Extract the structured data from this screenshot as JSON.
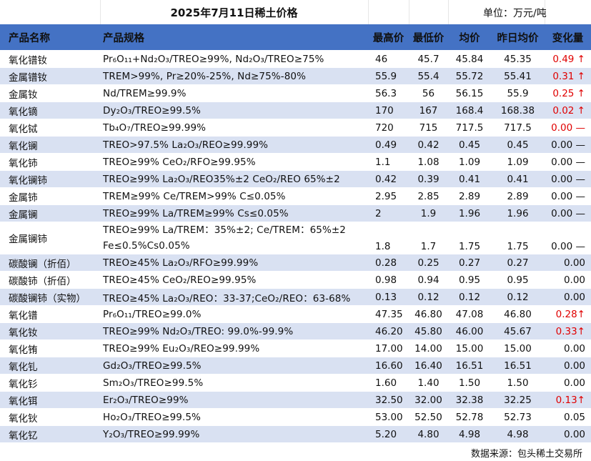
{
  "title": "2025年7月11日稀土价格",
  "unit": "单位：万元/吨",
  "headers": {
    "name": "产品名称",
    "spec": "产品规格",
    "high": "最高价",
    "low": "最低价",
    "avg": "均价",
    "prev_avg": "昨日均价",
    "change": "变化量"
  },
  "colors": {
    "header_bg": "#4472c4",
    "stripe": "#d9e1f2",
    "up": "#e00000"
  },
  "rows": [
    {
      "name": "氧化镨钕",
      "spec": "Pr₆O₁₁+Nd₂O₃/TREO≥99%, Nd₂O₃/TREO≥75%",
      "high": "46",
      "low": "45.7",
      "avg": "45.84",
      "prev": "45.35",
      "change": "0.49 ↑",
      "dir": "up"
    },
    {
      "name": "金属镨钕",
      "spec": "TREM>99%, Pr≥20%-25%, Nd≥75%-80%",
      "high": "55.9",
      "low": "55.4",
      "avg": "55.72",
      "prev": "55.41",
      "change": "0.31 ↑",
      "dir": "up"
    },
    {
      "name": "金属钕",
      "spec": "Nd/TREM≥99.9%",
      "high": "56.3",
      "low": "56",
      "avg": "56.15",
      "prev": "55.9",
      "change": "0.25 ↑",
      "dir": "up"
    },
    {
      "name": "氧化镝",
      "spec": "Dy₂O₃/TREO≥99.5%",
      "high": "170",
      "low": "167",
      "avg": "168.4",
      "prev": "168.38",
      "change": "0.02 ↑",
      "dir": "up"
    },
    {
      "name": "氧化铽",
      "spec": "Tb₄O₇/TREO≥99.99%",
      "high": "720",
      "low": "715",
      "avg": "717.5",
      "prev": "717.5",
      "change": "0.00 —",
      "dir": "flat-red"
    },
    {
      "name": "氧化镧",
      "spec": "TREO>97.5% La₂O₃/REO≥99.99%",
      "high": "0.49",
      "low": "0.42",
      "avg": "0.45",
      "prev": "0.45",
      "change": "0.00 —",
      "dir": "flat"
    },
    {
      "name": "氧化铈",
      "spec": "TREO≥99% CeO₂/RFO≥99.95%",
      "high": "1.1",
      "low": "1.08",
      "avg": "1.09",
      "prev": "1.09",
      "change": "0.00 —",
      "dir": "flat"
    },
    {
      "name": "氧化镧铈",
      "spec": "TREO≥99% La₂O₃/REO35%±2 CeO₂/REO 65%±2",
      "high": "0.42",
      "low": "0.39",
      "avg": "0.41",
      "prev": "0.41",
      "change": "0.00 —",
      "dir": "flat"
    },
    {
      "name": "金属铈",
      "spec": "TREM≥99% Ce/TREM>99% C≤0.05%",
      "high": "2.95",
      "low": "2.85",
      "avg": "2.89",
      "prev": "2.89",
      "change": "0.00 —",
      "dir": "flat"
    },
    {
      "name": "金属镧",
      "spec": "TREO≥99% La/TREM≥99% Cs≤0.05%",
      "high": "2",
      "low": "1.9",
      "avg": "1.96",
      "prev": "1.96",
      "change": "0.00 —",
      "dir": "flat"
    },
    {
      "name": "金属镧铈",
      "spec": "TREO≥99% La/TREM：35%±2; Ce/TREM：65%±2 Fe≤0.5%Cs0.05%",
      "high": "1.8",
      "low": "1.7",
      "avg": "1.75",
      "prev": "1.75",
      "change": "0.00 —",
      "dir": "flat",
      "tall": true
    },
    {
      "name": "碳酸镧（折佰）",
      "spec": "TREO≥45% La₂O₃/RFO≥99.99%",
      "high": "0.28",
      "low": "0.25",
      "avg": "0.27",
      "prev": "0.27",
      "change": "0.00",
      "dir": "flat"
    },
    {
      "name": "碳酸铈（折佰）",
      "spec": "TREO≥45% CeO₂/REO≥99.95%",
      "high": "0.98",
      "low": "0.94",
      "avg": "0.95",
      "prev": "0.95",
      "change": "0.00",
      "dir": "flat"
    },
    {
      "name": "碳酸镧铈（实物）",
      "spec": "TREO≥45% La₂O₃/REO：33-37;CeO₂/REO：63-68%",
      "high": "0.13",
      "low": "0.12",
      "avg": "0.12",
      "prev": "0.12",
      "change": "0.00",
      "dir": "flat"
    },
    {
      "name": "氧化镨",
      "spec": "Pr₆O₁₁/TREO≥99.0%",
      "high": "47.35",
      "low": "46.80",
      "avg": "47.08",
      "prev": "46.80",
      "change": "0.28↑",
      "dir": "up"
    },
    {
      "name": "氧化钕",
      "spec": "TREO≥99% Nd₂O₃/TREO: 99.0%-99.9%",
      "high": "46.20",
      "low": "45.80",
      "avg": "46.00",
      "prev": "45.67",
      "change": "0.33↑",
      "dir": "up"
    },
    {
      "name": "氧化铕",
      "spec": "TREO≥99% Eu₂O₃/REO≥99.99%",
      "high": "17.00",
      "low": "14.00",
      "avg": "15.00",
      "prev": "15.00",
      "change": "0.00",
      "dir": "flat"
    },
    {
      "name": "氧化钆",
      "spec": "Gd₂O₃/TREO≥99.5%",
      "high": "16.60",
      "low": "16.40",
      "avg": "16.51",
      "prev": "16.51",
      "change": "0.00",
      "dir": "flat"
    },
    {
      "name": "氧化钐",
      "spec": "Sm₂O₃/TREO≥99.5%",
      "high": "1.60",
      "low": "1.40",
      "avg": "1.50",
      "prev": "1.50",
      "change": "0.00",
      "dir": "flat"
    },
    {
      "name": "氧化铒",
      "spec": "Er₂O₃/TREO≥99%",
      "high": "32.50",
      "low": "32.00",
      "avg": "32.38",
      "prev": "32.25",
      "change": "0.13↑",
      "dir": "up"
    },
    {
      "name": "氧化钬",
      "spec": "Ho₂O₃/TREO≥99.5%",
      "high": "53.00",
      "low": "52.50",
      "avg": "52.78",
      "prev": "52.73",
      "change": "0.05",
      "dir": "flat"
    },
    {
      "name": "氧化钇",
      "spec": "Y₂O₃/TREO≥99.99%",
      "high": "5.20",
      "low": "4.80",
      "avg": "4.98",
      "prev": "4.98",
      "change": "0.00",
      "dir": "flat"
    }
  ],
  "source": "数据来源：包头稀土交易所"
}
